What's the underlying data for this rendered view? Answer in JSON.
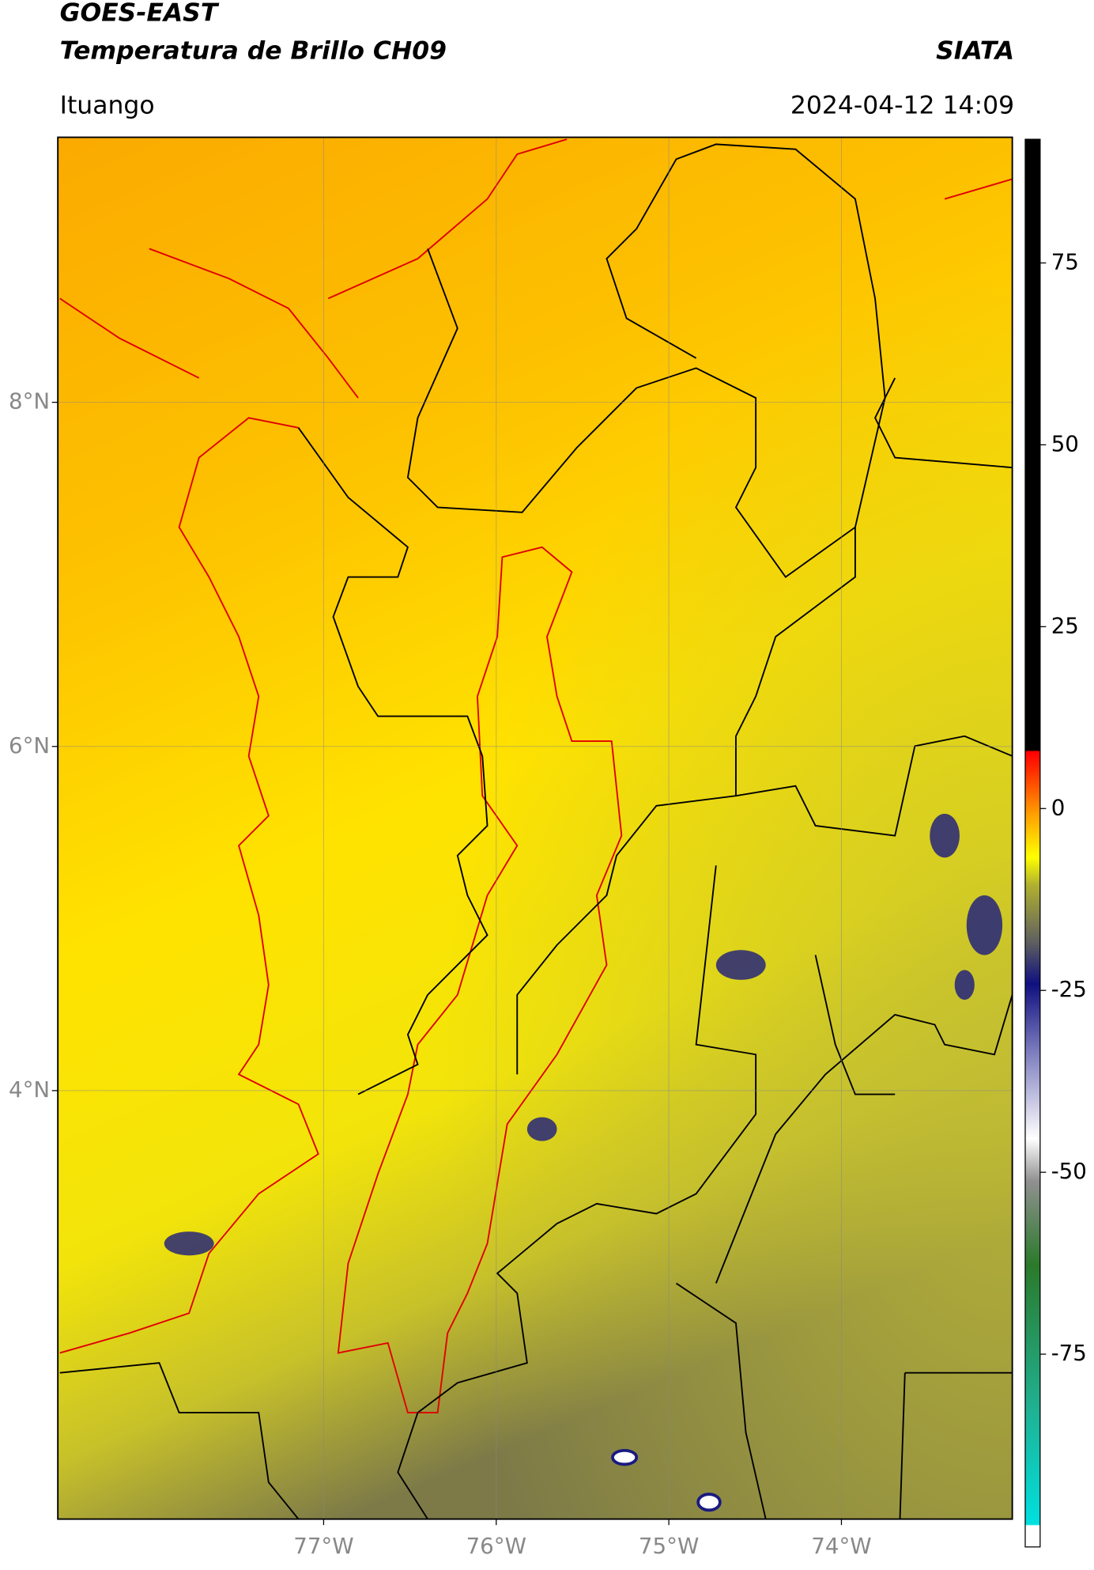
{
  "header": {
    "title": "GOES-EAST",
    "subtitle": "Temperatura de Brillo CH09",
    "source": "SIATA",
    "location": "Ituango",
    "datetime": "2024-04-12 14:09"
  },
  "map": {
    "xlim": [
      -78.54,
      -73.01
    ],
    "ylim": [
      1.51,
      9.54
    ],
    "xticks": [
      {
        "value": -77,
        "label": "77°W"
      },
      {
        "value": -76,
        "label": "76°W"
      },
      {
        "value": -75,
        "label": "75°W"
      },
      {
        "value": -74,
        "label": "74°W"
      }
    ],
    "yticks": [
      {
        "value": 8,
        "label": "8°N"
      },
      {
        "value": 6,
        "label": "6°N"
      },
      {
        "value": 4,
        "label": "4°N"
      }
    ],
    "grid": true
  },
  "colorbar": {
    "lim": [
      -101.5,
      92
    ],
    "ticks": [
      75,
      50,
      25,
      0,
      -25,
      -50,
      -75
    ]
  }
}
